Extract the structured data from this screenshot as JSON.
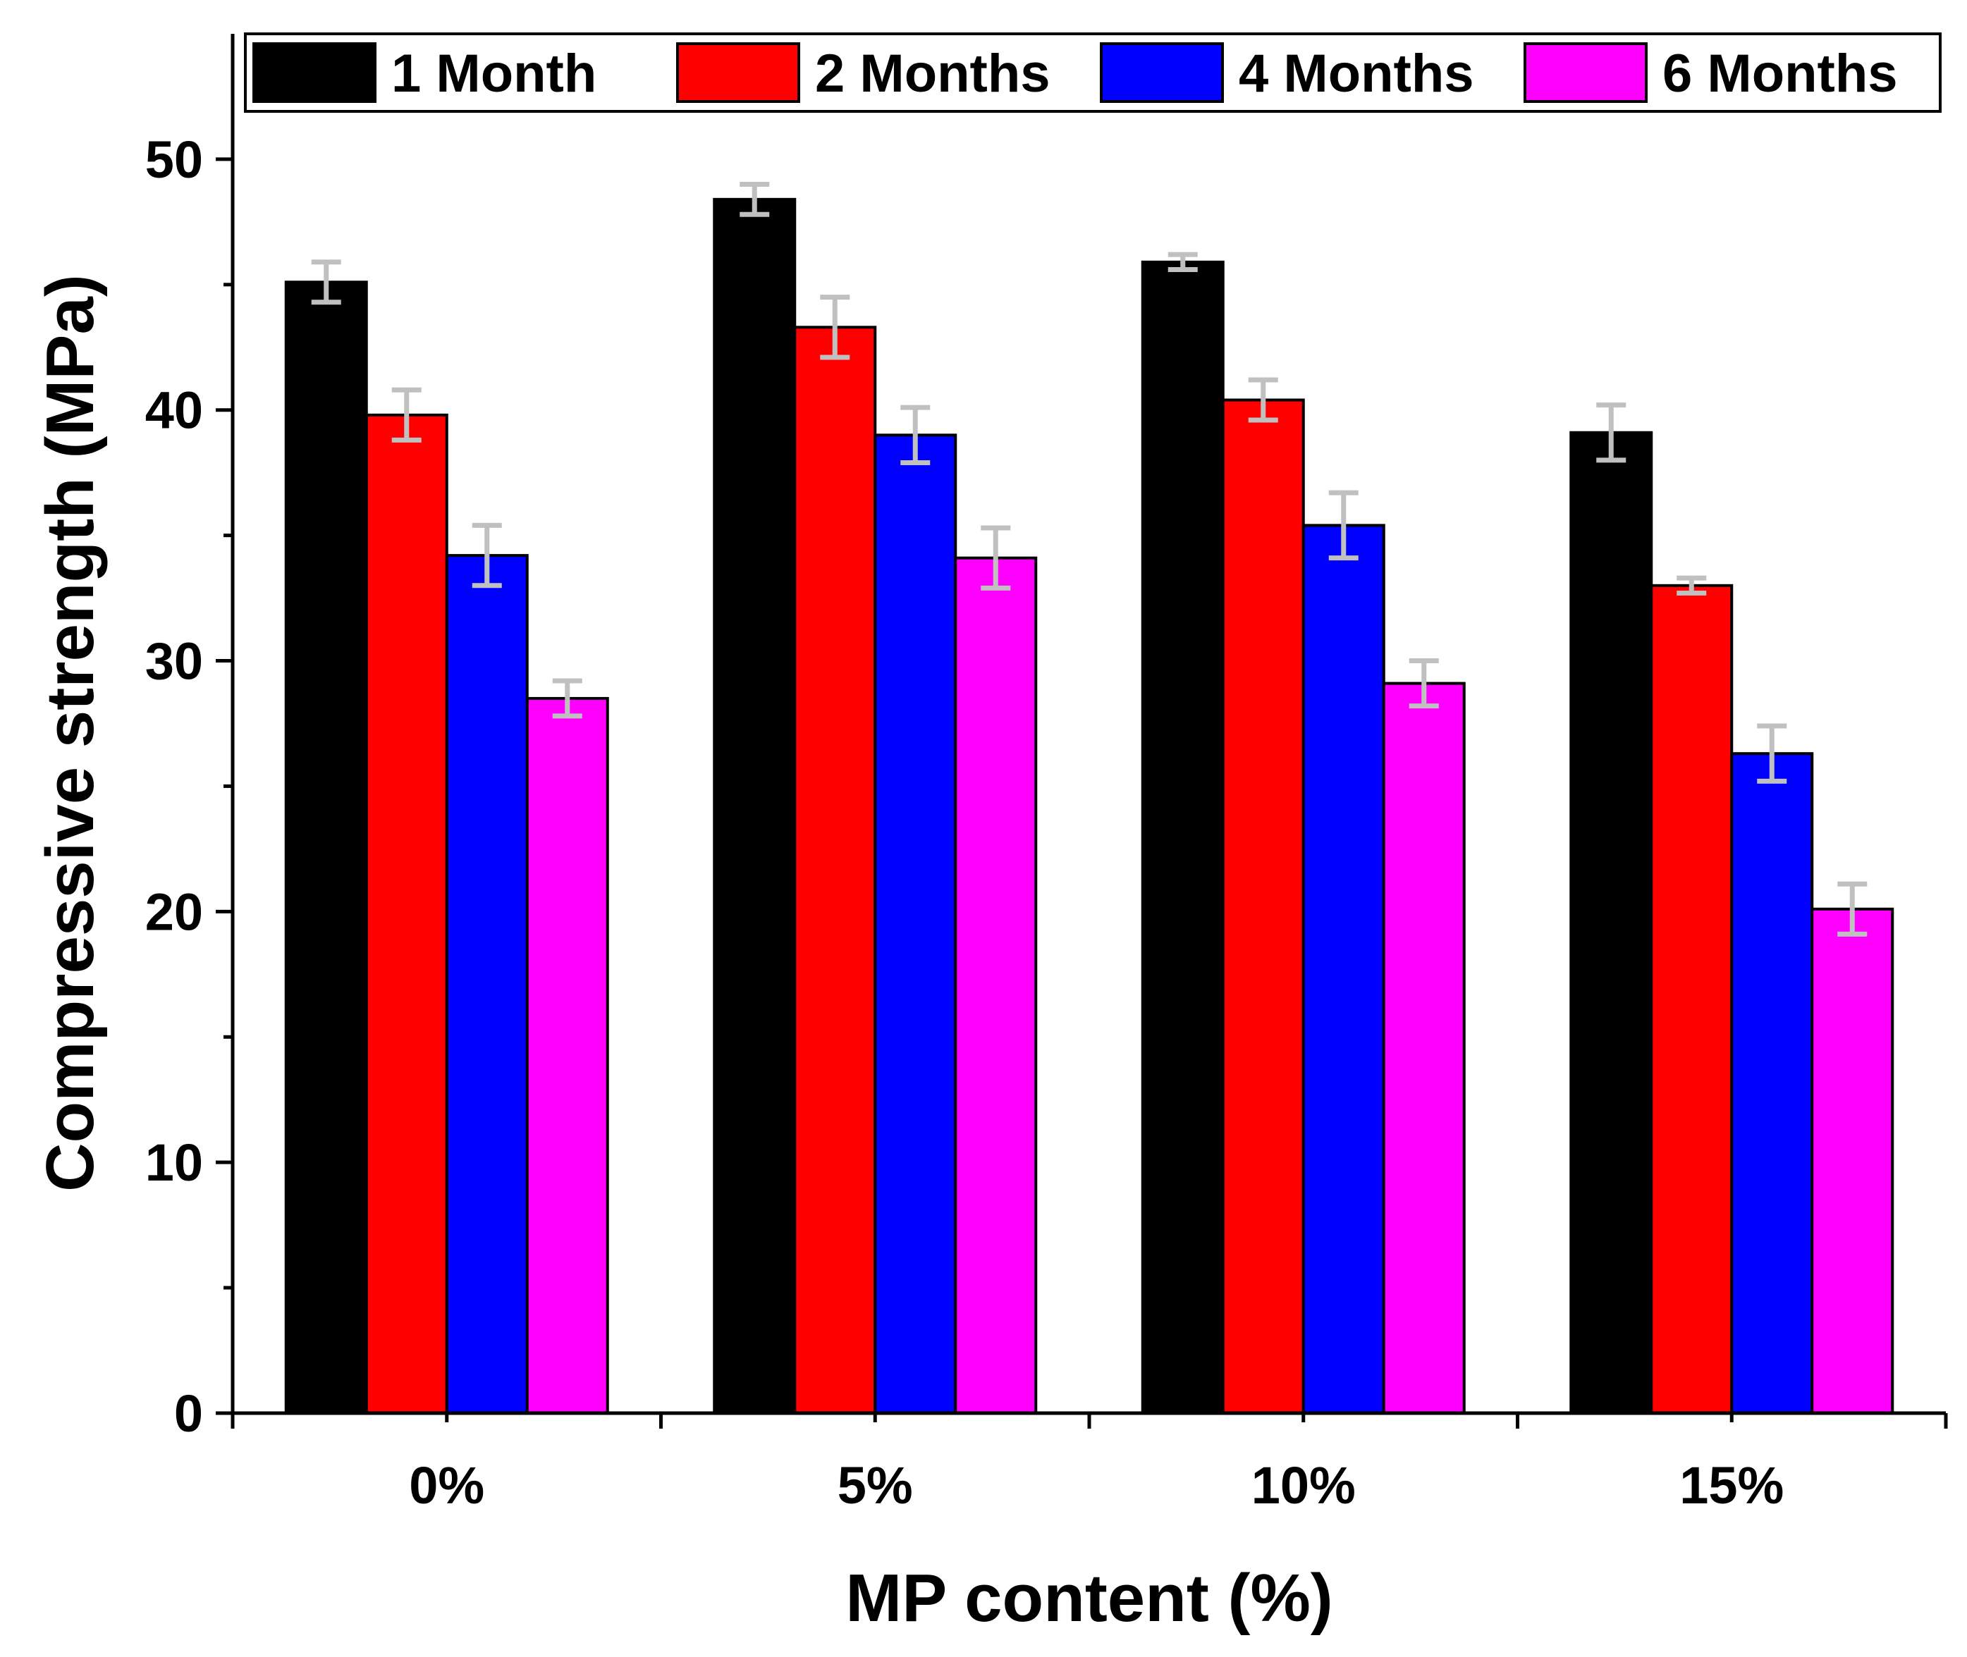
{
  "chart_data": {
    "type": "bar",
    "title": "",
    "xlabel": "MP content (%)",
    "ylabel": "Compressive strength (MPa)",
    "ylim": [
      0,
      55
    ],
    "yticks": [
      0,
      10,
      20,
      30,
      40,
      50
    ],
    "yticks_minor": [
      5,
      15,
      25,
      35,
      45
    ],
    "categories": [
      "0%",
      "5%",
      "10%",
      "15%"
    ],
    "legend_position": "top",
    "series": [
      {
        "name": "1 Month",
        "color": "#000000",
        "values": [
          45.1,
          48.4,
          45.9,
          39.1
        ],
        "errors": [
          0.8,
          0.6,
          0.3,
          1.1
        ]
      },
      {
        "name": "2 Months",
        "color": "#ff0000",
        "values": [
          39.8,
          43.3,
          40.4,
          33.0
        ],
        "errors": [
          1.0,
          1.2,
          0.8,
          0.3
        ]
      },
      {
        "name": "4 Months",
        "color": "#0000ff",
        "values": [
          34.2,
          39.0,
          35.4,
          26.3
        ],
        "errors": [
          1.2,
          1.1,
          1.3,
          1.1
        ]
      },
      {
        "name": "6 Months",
        "color": "#ff00ff",
        "values": [
          28.5,
          34.1,
          29.1,
          20.1
        ],
        "errors": [
          0.7,
          1.2,
          0.9,
          1.0
        ]
      }
    ],
    "error_bar_color": "#c0c0c0"
  }
}
